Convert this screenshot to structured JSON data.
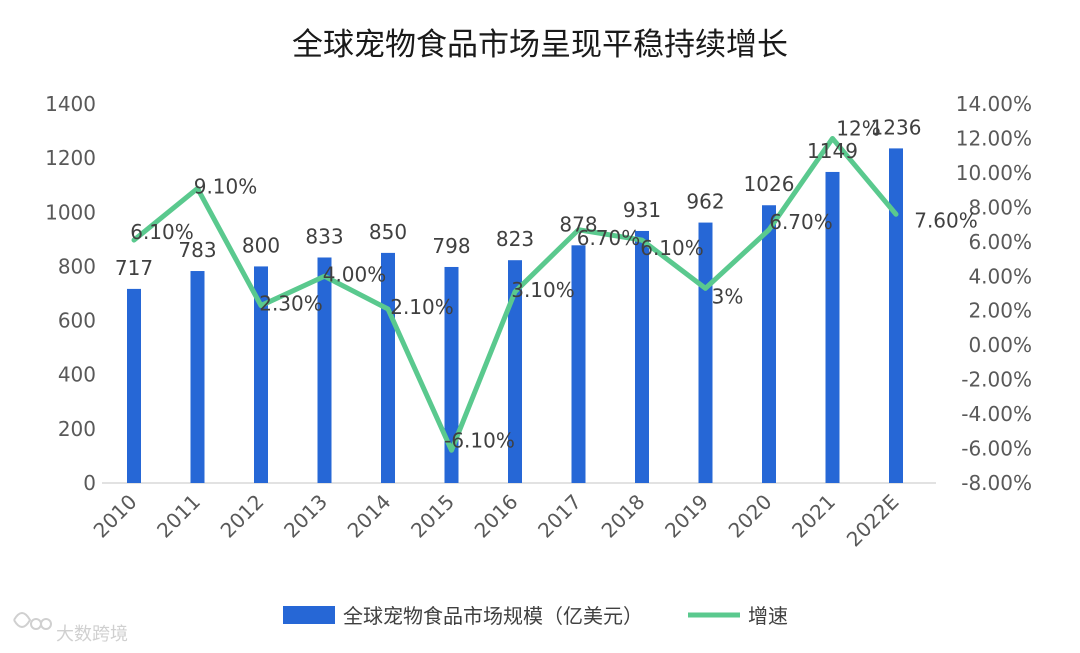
{
  "chart_data": {
    "type": "bar",
    "title": "全球宠物食品市场呈现平稳持续增长",
    "categories": [
      "2010",
      "2011",
      "2012",
      "2013",
      "2014",
      "2015",
      "2016",
      "2017",
      "2018",
      "2019",
      "2020",
      "2021",
      "2022E"
    ],
    "series": [
      {
        "name": "全球宠物食品市场规模（亿美元）",
        "type": "bar",
        "axis": "left",
        "color": "#2667d6",
        "values": [
          717,
          783,
          800,
          833,
          850,
          798,
          823,
          878,
          931,
          962,
          1026,
          1149,
          1236
        ],
        "labels": [
          "717",
          "783",
          "800",
          "833",
          "850",
          "798",
          "823",
          "878",
          "931",
          "962",
          "1026",
          "1149",
          "1236"
        ]
      },
      {
        "name": "增速",
        "type": "line",
        "axis": "right",
        "color": "#5ac98e",
        "values": [
          6.1,
          9.1,
          2.3,
          4.0,
          2.1,
          -6.1,
          3.1,
          6.7,
          6.1,
          3.3,
          6.7,
          12.0,
          7.6
        ],
        "labels": [
          "6.10%",
          "9.10%",
          "2.30%",
          "4.00%",
          "2.10%",
          "-6.10%",
          "3.10%",
          "6.70%",
          "6.10%",
          "3%",
          "6.70%",
          "12%",
          "7.60%"
        ]
      }
    ],
    "y_left": {
      "min": 0,
      "max": 1400,
      "ticks": [
        "0",
        "200",
        "400",
        "600",
        "800",
        "1000",
        "1200",
        "1400"
      ]
    },
    "y_right": {
      "min": -8,
      "max": 14,
      "ticks": [
        "-8.00%",
        "-6.00%",
        "-4.00%",
        "-2.00%",
        "0.00%",
        "2.00%",
        "4.00%",
        "6.00%",
        "8.00%",
        "10.00%",
        "12.00%",
        "14.00%"
      ]
    },
    "legend_position": "bottom",
    "grid": false
  },
  "watermark": "大数跨境"
}
